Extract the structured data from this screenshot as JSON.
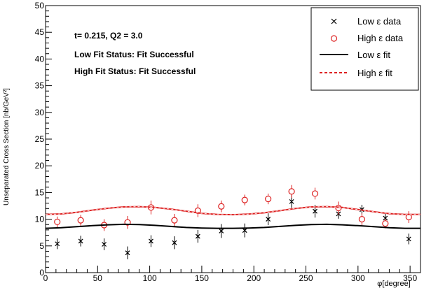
{
  "chart_data": {
    "type": "scatter",
    "xlabel": "φ[degree]",
    "ylabel": "Unseparated Cross Section [nb/GeV²]",
    "xlim": [
      0,
      360
    ],
    "ylim": [
      0,
      50
    ],
    "x_ticks": [
      "0",
      "50",
      "100",
      "150",
      "200",
      "250",
      "300",
      "350"
    ],
    "y_ticks": [
      "0",
      "5",
      "10",
      "15",
      "20",
      "25",
      "30",
      "35",
      "40",
      "45",
      "50"
    ],
    "grid": false,
    "legend_position": "top-right",
    "annotations": [
      "t= 0.215, Q2 = 3.0",
      "Low Fit Status: Fit Successful",
      "High Fit Status: Fit Successful"
    ],
    "legend": [
      {
        "label": "Low ε data",
        "marker": "x",
        "color": "#000000"
      },
      {
        "label": "High ε data",
        "marker": "o",
        "color": "#dd2020"
      },
      {
        "label": "Low ε fit",
        "line": "solid",
        "color": "#000000"
      },
      {
        "label": "High ε fit",
        "line": "dashed",
        "color": "#dd2020"
      }
    ],
    "series": [
      {
        "name": "Low ε data",
        "color": "#000000",
        "marker": "x",
        "x": [
          11.25,
          33.75,
          56.25,
          78.75,
          101.25,
          123.75,
          146.25,
          168.75,
          191.25,
          213.75,
          236.25,
          258.75,
          281.25,
          303.75,
          326.25,
          348.75
        ],
        "y": [
          5.4,
          5.9,
          5.3,
          3.7,
          5.9,
          5.6,
          6.8,
          7.8,
          7.9,
          10.0,
          13.3,
          11.5,
          11.0,
          11.8,
          10.2,
          6.3
        ],
        "err": [
          1.0,
          1.0,
          1.1,
          1.2,
          1.1,
          1.2,
          1.2,
          1.3,
          1.3,
          1.1,
          1.2,
          1.2,
          0.9,
          0.9,
          0.9,
          1.0
        ]
      },
      {
        "name": "High ε data",
        "color": "#dd2020",
        "marker": "o",
        "x": [
          11.25,
          33.75,
          56.25,
          78.75,
          101.25,
          123.75,
          146.25,
          168.75,
          191.25,
          213.75,
          236.25,
          258.75,
          281.25,
          303.75,
          326.25,
          348.75
        ],
        "y": [
          9.5,
          9.8,
          8.9,
          9.4,
          12.2,
          9.8,
          11.6,
          12.4,
          13.6,
          13.8,
          15.2,
          14.8,
          12.1,
          10.0,
          9.2,
          10.4
        ],
        "err": [
          1.0,
          1.0,
          1.1,
          1.2,
          1.3,
          1.2,
          1.2,
          1.1,
          1.0,
          1.0,
          1.2,
          1.1,
          1.2,
          1.1,
          0.9,
          1.1
        ]
      },
      {
        "name": "Low ε fit",
        "color": "#000000",
        "line": "solid",
        "x": [
          0,
          15,
          30,
          45,
          60,
          75,
          90,
          105,
          120,
          135,
          150,
          165,
          180,
          195,
          210,
          225,
          240,
          255,
          270,
          285,
          300,
          315,
          330,
          345,
          360
        ],
        "y": [
          8.3,
          8.4,
          8.6,
          8.8,
          8.95,
          9.05,
          9.0,
          8.85,
          8.65,
          8.45,
          8.35,
          8.3,
          8.3,
          8.35,
          8.45,
          8.65,
          8.85,
          9.0,
          9.05,
          8.95,
          8.8,
          8.6,
          8.4,
          8.3,
          8.3
        ]
      },
      {
        "name": "High ε fit",
        "color": "#dd2020",
        "line": "dashed",
        "x": [
          0,
          15,
          30,
          45,
          60,
          75,
          90,
          105,
          120,
          135,
          150,
          165,
          180,
          195,
          210,
          225,
          240,
          255,
          270,
          285,
          300,
          315,
          330,
          345,
          360
        ],
        "y": [
          10.9,
          11.0,
          11.3,
          11.7,
          12.05,
          12.3,
          12.35,
          12.2,
          11.9,
          11.5,
          11.1,
          10.9,
          10.85,
          10.95,
          11.2,
          11.6,
          12.0,
          12.3,
          12.35,
          12.2,
          11.8,
          11.4,
          11.05,
          10.9,
          10.9
        ]
      }
    ]
  }
}
